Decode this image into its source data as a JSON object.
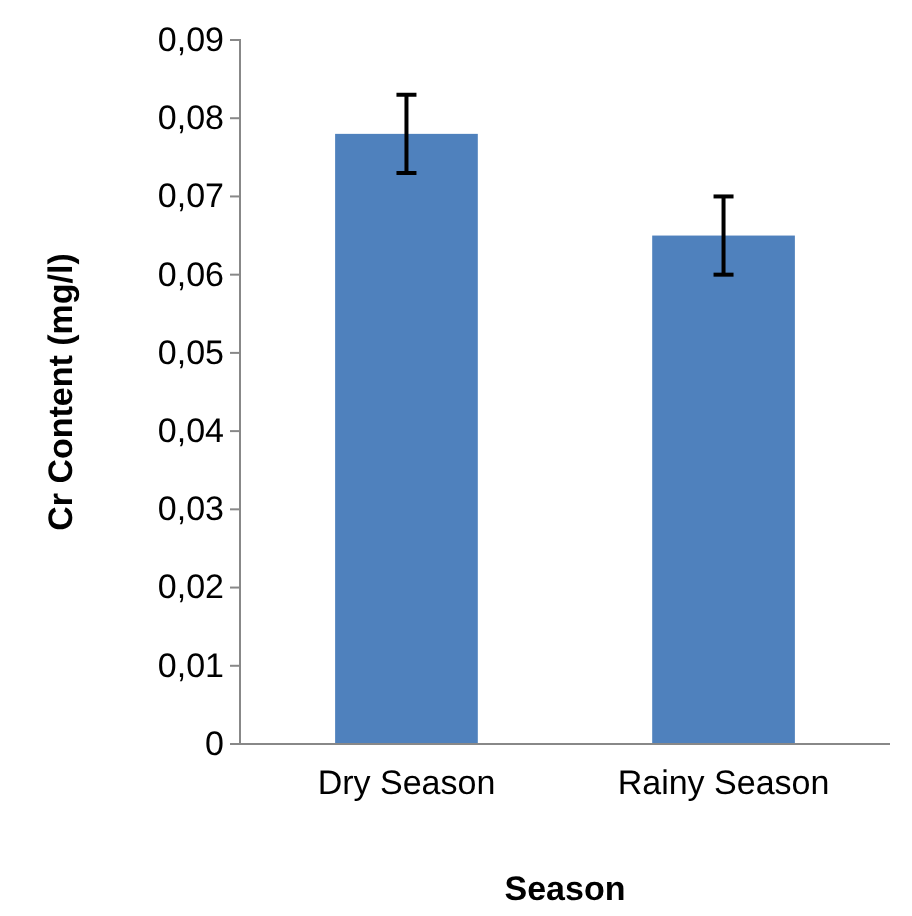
{
  "chart_data": {
    "type": "bar",
    "xlabel": "Season",
    "ylabel": "Cr Content (mg/l)",
    "categories": [
      "Dry Season",
      "Rainy Season"
    ],
    "values": [
      0.078,
      0.065
    ],
    "errors": [
      0.005,
      0.005
    ],
    "color": "#4f81bd",
    "ylim": [
      0,
      0.09
    ],
    "yticks": [
      0,
      {
        "value": 0.01,
        "label": "0,01"
      },
      {
        "value": 0.02,
        "label": "0,02"
      },
      {
        "value": 0.03,
        "label": "0,03"
      },
      {
        "value": 0.04,
        "label": "0,04"
      },
      {
        "value": 0.05,
        "label": "0,05"
      },
      {
        "value": 0.06,
        "label": "0,06"
      },
      {
        "value": 0.07,
        "label": "0,07"
      },
      {
        "value": 0.08,
        "label": "0,08"
      },
      {
        "value": 0.09,
        "label": "0,09"
      }
    ],
    "grid": false
  }
}
